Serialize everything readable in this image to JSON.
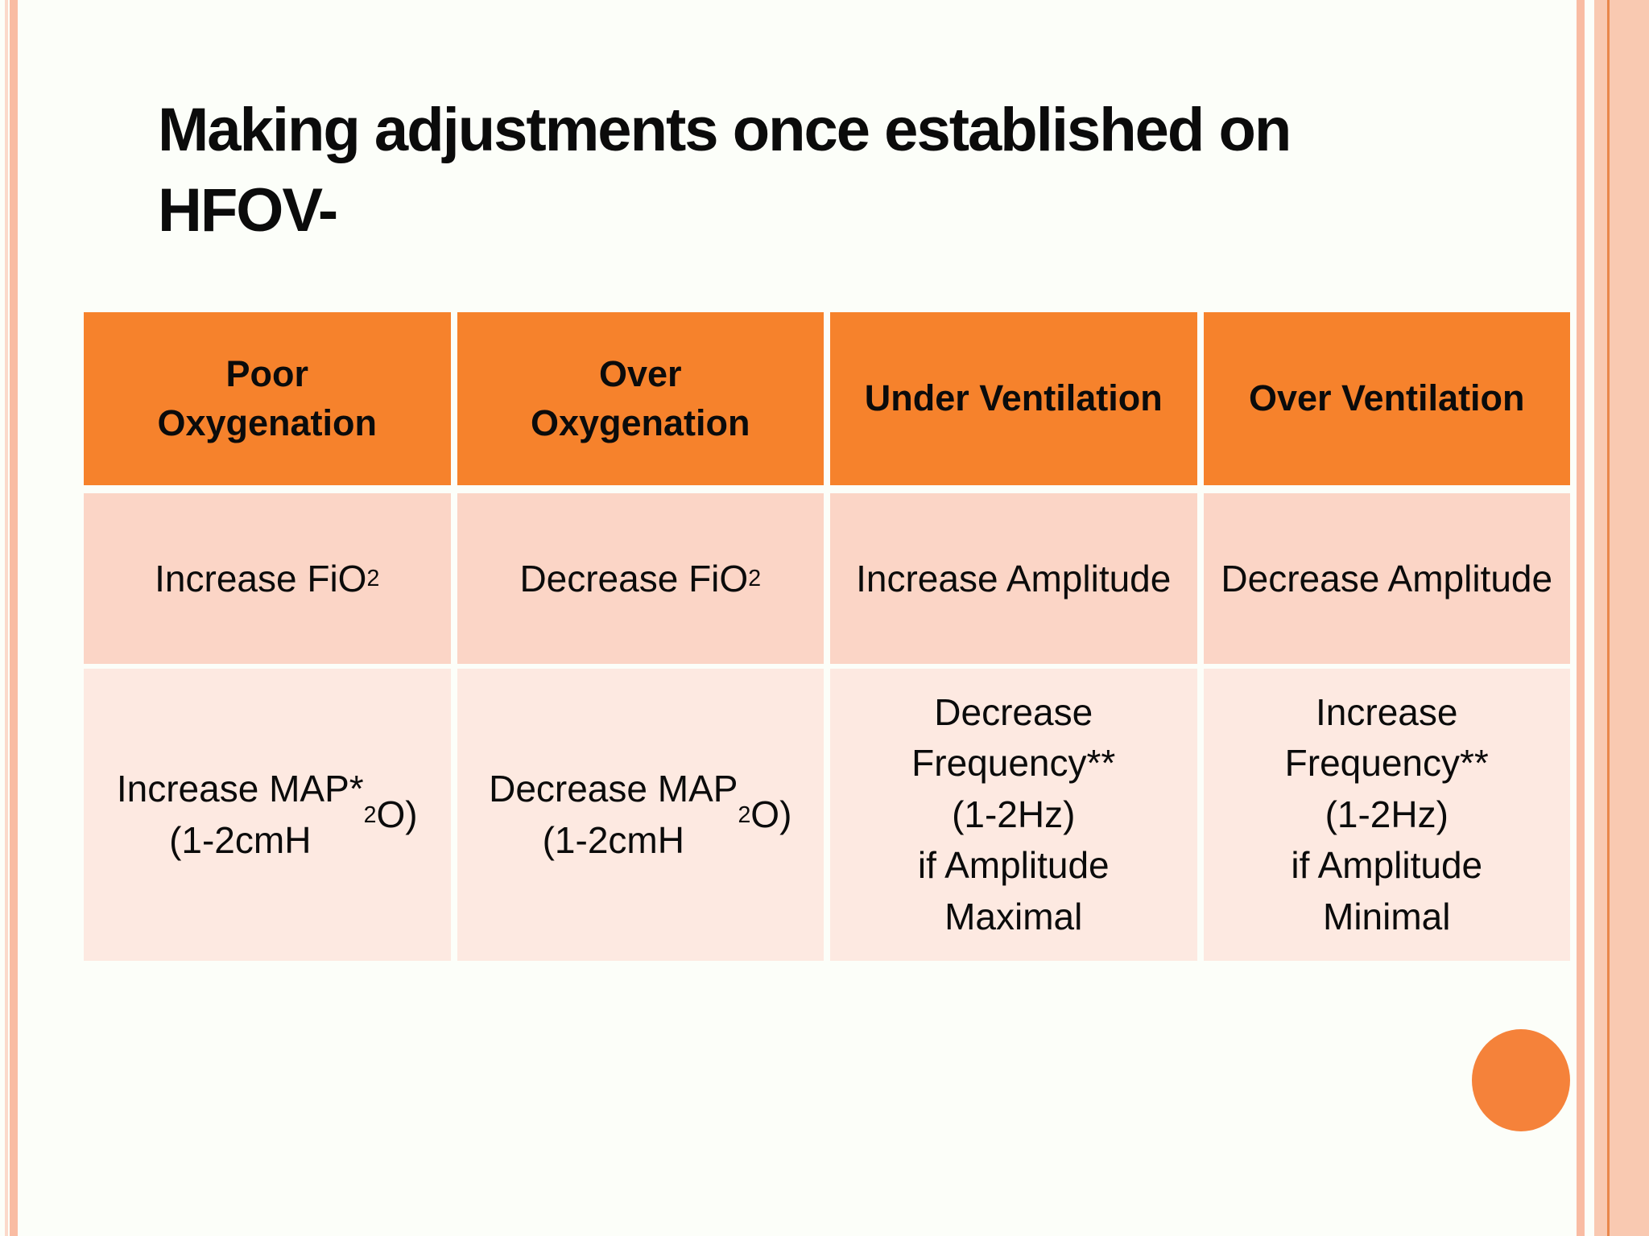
{
  "slide": {
    "title": "Making adjustments once established on\nHFOV-"
  },
  "table": {
    "headers": [
      "Poor\nOxygenation",
      "Over\nOxygenation",
      "Under Ventilation",
      "Over Ventilation"
    ],
    "rows": [
      [
        "Increase FiO~2~",
        "Decrease FiO~2~",
        "Increase Amplitude",
        "Decrease Amplitude"
      ],
      [
        "Increase MAP*\n(1-2cmH~2~O)",
        "Decrease MAP\n(1-2cmH~2~O)",
        "Decrease\nFrequency**\n(1-2Hz)\nif Amplitude\nMaximal",
        "Increase\nFrequency**\n(1-2Hz)\nif Amplitude\nMinimal"
      ]
    ]
  },
  "colors": {
    "background": "#FCFEF9",
    "text_black": "#0B0B0B",
    "header_orange": "#F6822C",
    "row1_pink": "#FBD5C6",
    "row2_pink": "#FDE9E1",
    "accent_circle": "#F5823A",
    "stripe_salmon": "#F9BCA3",
    "stripe_light": "#FBD9CA",
    "band_salmon": "#F9C9B1",
    "band_line": "#E9874B"
  }
}
